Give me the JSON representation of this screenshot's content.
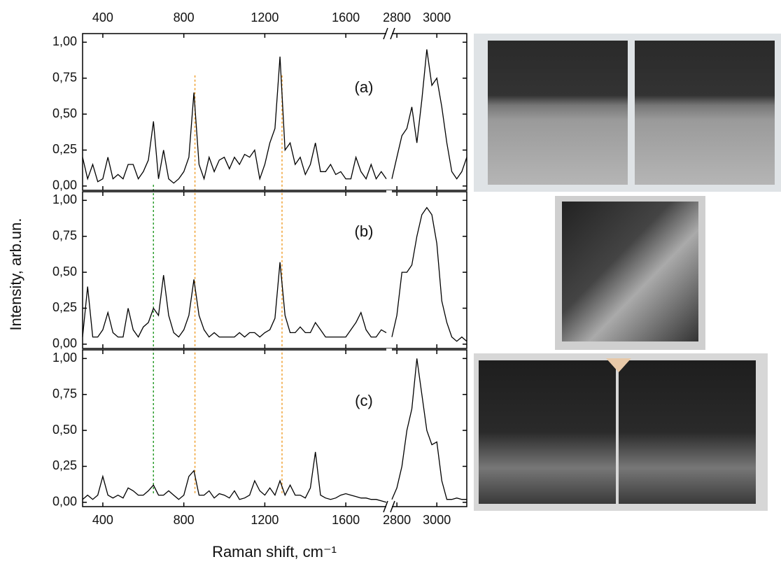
{
  "chart_data": {
    "type": "line",
    "x_label": "Raman shift, cm⁻¹",
    "y_label": "Intensity, arb.un.",
    "xlim": [
      300,
      3150
    ],
    "xbreak": [
      1800,
      2775
    ],
    "xticks": [
      400,
      800,
      1200,
      1600,
      2800,
      3000
    ],
    "ylim": [
      -0.03,
      1.06
    ],
    "yticks": [
      {
        "value": 0,
        "label": "0,00"
      },
      {
        "value": 0.25,
        "label": "0,25"
      },
      {
        "value": 0.5,
        "label": "0,50"
      },
      {
        "value": 0.75,
        "label": "0,75"
      },
      {
        "value": 1,
        "label": "1,00"
      }
    ],
    "markers": [
      {
        "x": 650,
        "color": "#2e9e2e"
      },
      {
        "x": 855,
        "color": "#f0a030"
      },
      {
        "x": 1285,
        "color": "#f0a030"
      }
    ],
    "x": [
      300,
      325,
      350,
      375,
      400,
      425,
      450,
      475,
      500,
      525,
      550,
      575,
      600,
      625,
      650,
      675,
      700,
      725,
      750,
      775,
      800,
      825,
      850,
      875,
      900,
      925,
      950,
      975,
      1000,
      1025,
      1050,
      1075,
      1100,
      1125,
      1150,
      1175,
      1200,
      1225,
      1250,
      1275,
      1300,
      1325,
      1350,
      1375,
      1400,
      1425,
      1450,
      1475,
      1500,
      1525,
      1550,
      1575,
      1600,
      1625,
      1650,
      1675,
      1700,
      1725,
      1750,
      1775,
      1800,
      2775,
      2800,
      2825,
      2850,
      2875,
      2900,
      2925,
      2950,
      2975,
      3000,
      3025,
      3050,
      3075,
      3100,
      3125,
      3150
    ],
    "series": [
      {
        "name": "(a)",
        "color": "#000000",
        "values": [
          0.2,
          0.05,
          0.15,
          0.03,
          0.05,
          0.2,
          0.05,
          0.08,
          0.05,
          0.15,
          0.15,
          0.05,
          0.1,
          0.18,
          0.45,
          0.05,
          0.25,
          0.05,
          0.02,
          0.05,
          0.1,
          0.2,
          0.65,
          0.15,
          0.05,
          0.2,
          0.1,
          0.18,
          0.2,
          0.12,
          0.2,
          0.15,
          0.22,
          0.2,
          0.25,
          0.05,
          0.15,
          0.3,
          0.4,
          0.9,
          0.25,
          0.3,
          0.15,
          0.2,
          0.08,
          0.15,
          0.3,
          0.1,
          0.1,
          0.15,
          0.08,
          0.1,
          0.05,
          0.05,
          0.2,
          0.1,
          0.05,
          0.15,
          0.05,
          0.1,
          0.05,
          0.05,
          0.2,
          0.35,
          0.4,
          0.55,
          0.3,
          0.6,
          0.95,
          0.7,
          0.75,
          0.55,
          0.3,
          0.1,
          0.05,
          0.1,
          0.2
        ]
      },
      {
        "name": "(b)",
        "color": "#000000",
        "values": [
          0.05,
          0.4,
          0.05,
          0.05,
          0.1,
          0.22,
          0.08,
          0.05,
          0.05,
          0.25,
          0.1,
          0.05,
          0.12,
          0.15,
          0.25,
          0.2,
          0.48,
          0.2,
          0.08,
          0.05,
          0.1,
          0.2,
          0.45,
          0.2,
          0.1,
          0.05,
          0.08,
          0.05,
          0.05,
          0.05,
          0.05,
          0.08,
          0.05,
          0.08,
          0.08,
          0.05,
          0.08,
          0.1,
          0.18,
          0.57,
          0.2,
          0.08,
          0.08,
          0.12,
          0.08,
          0.08,
          0.15,
          0.1,
          0.05,
          0.05,
          0.05,
          0.05,
          0.05,
          0.1,
          0.15,
          0.22,
          0.1,
          0.05,
          0.05,
          0.1,
          0.08,
          0.05,
          0.2,
          0.5,
          0.5,
          0.55,
          0.75,
          0.9,
          0.95,
          0.9,
          0.7,
          0.3,
          0.15,
          0.05,
          0.02,
          0.05,
          0.02
        ]
      },
      {
        "name": "(c)",
        "color": "#000000",
        "values": [
          0.02,
          0.05,
          0.02,
          0.05,
          0.18,
          0.05,
          0.03,
          0.05,
          0.03,
          0.1,
          0.08,
          0.05,
          0.05,
          0.08,
          0.12,
          0.05,
          0.05,
          0.08,
          0.05,
          0.02,
          0.05,
          0.18,
          0.22,
          0.05,
          0.05,
          0.08,
          0.03,
          0.06,
          0.05,
          0.03,
          0.08,
          0.02,
          0.03,
          0.05,
          0.15,
          0.08,
          0.05,
          0.1,
          0.05,
          0.15,
          0.05,
          0.12,
          0.05,
          0.05,
          0.03,
          0.1,
          0.35,
          0.05,
          0.03,
          0.02,
          0.03,
          0.05,
          0.06,
          0.05,
          0.04,
          0.03,
          0.03,
          0.02,
          0.02,
          0.01,
          0.0,
          0.02,
          0.1,
          0.25,
          0.5,
          0.65,
          1.0,
          0.75,
          0.5,
          0.4,
          0.42,
          0.15,
          0.02,
          0.02,
          0.03,
          0.02,
          0.02
        ]
      }
    ]
  }
}
